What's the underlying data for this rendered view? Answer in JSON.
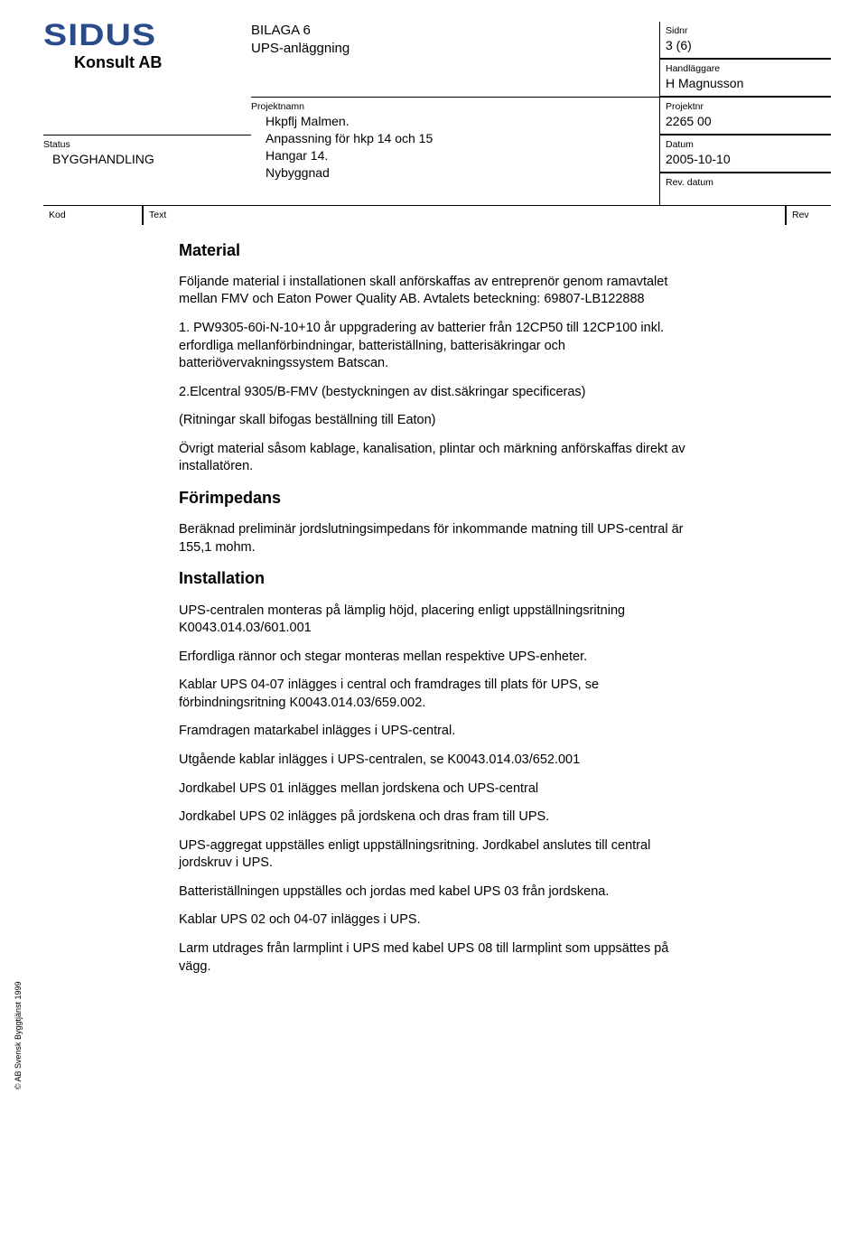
{
  "logo": {
    "brand": "SIDUS",
    "sub": "Konsult AB"
  },
  "bilaga": {
    "line1": "BILAGA 6",
    "line2": "UPS-anläggning"
  },
  "header": {
    "sidnr_label": "Sidnr",
    "sidnr_value": "3 (6)",
    "handlaggare_label": "Handläggare",
    "handlaggare_value": "H Magnusson",
    "projektnamn_label": "Projektnamn",
    "projektnamn_l1": "Hkpflj Malmen.",
    "projektnamn_l2": "Anpassning för hkp 14 och 15",
    "projektnamn_l3": "Hangar 14.",
    "projektnamn_l4": "Nybyggnad",
    "projektnr_label": "Projektnr",
    "projektnr_value": "2265 00",
    "datum_label": "Datum",
    "datum_value": "2005-10-10",
    "status_label": "Status",
    "status_value": "BYGGHANDLING",
    "revdatum_label": "Rev. datum",
    "revdatum_value": ""
  },
  "ktr": {
    "kod": "Kod",
    "text": "Text",
    "rev": "Rev"
  },
  "body": {
    "h_material": "Material",
    "p_material1": "Följande material i installationen skall anförskaffas av entreprenör genom ramavtalet mellan FMV och Eaton Power Quality AB. Avtalets beteckning: 69807-LB122888",
    "p_material2": "1. PW9305-60i-N-10+10 år uppgradering av batterier från 12CP50 till 12CP100 inkl. erfordliga mellanförbindningar, batteriställning, batterisäkringar och batteriövervakningssystem Batscan.",
    "p_material3": "2.Elcentral 9305/B-FMV (bestyckningen av dist.säkringar specificeras)",
    "p_material4": "(Ritningar skall bifogas beställning till Eaton)",
    "p_material5": "Övrigt material såsom kablage, kanalisation, plintar och märkning anförskaffas direkt av installatören.",
    "h_forimp": "Förimpedans",
    "p_forimp": "Beräknad preliminär jordslutningsimpedans för inkommande matning till UPS-central är 155,1 mohm.",
    "h_install": "Installation",
    "p_inst1": "UPS-centralen monteras på lämplig höjd, placering enligt uppställningsritning K0043.014.03/601.001",
    "p_inst2": "Erfordliga rännor och stegar monteras mellan respektive UPS-enheter.",
    "p_inst3": "Kablar UPS 04-07 inlägges i central och framdrages till plats för UPS, se förbindningsritning K0043.014.03/659.002.",
    "p_inst4": "Framdragen matarkabel inlägges i UPS-central.",
    "p_inst5": "Utgående kablar inlägges i UPS-centralen, se K0043.014.03/652.001",
    "p_inst6": "Jordkabel UPS 01 inlägges mellan jordskena och UPS-central",
    "p_inst7": "Jordkabel UPS 02 inlägges på jordskena och dras fram till UPS.",
    "p_inst8": "UPS-aggregat uppställes enligt uppställningsritning. Jordkabel anslutes till central jordskruv i UPS.",
    "p_inst9": "Batteriställningen uppställes och jordas med kabel UPS 03 från jordskena.",
    "p_inst10": "Kablar UPS 02 och 04-07 inlägges i UPS.",
    "p_inst11": "Larm utdrages från larmplint i UPS med kabel UPS 08 till larmplint som uppsättes på vägg."
  },
  "side_caption": "© AB Svensk Byggtjänst 1999",
  "colors": {
    "logo_blue": "#2a4a8a",
    "text": "#000000",
    "bg": "#ffffff",
    "border": "#000000"
  }
}
